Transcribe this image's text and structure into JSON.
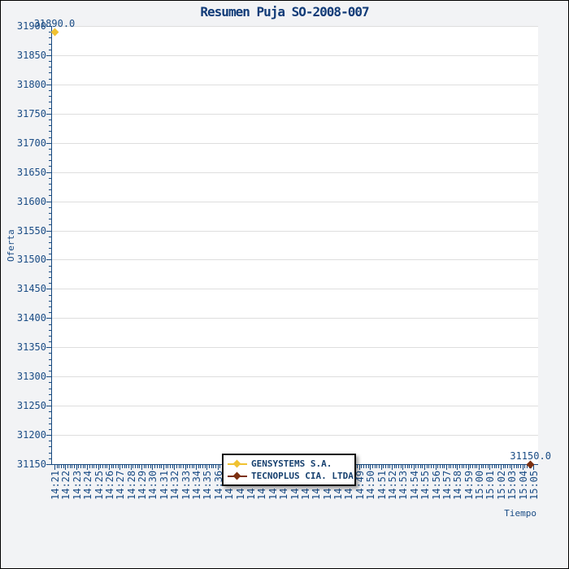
{
  "colors": {
    "navy_text": "#1a4c85",
    "title_navy": "#123c78",
    "axis_navy": "#17497f",
    "gridline": "#dedede",
    "plot_background": "#ffffff",
    "outer_background": "#f2f3f5",
    "series_gensystems": "#f0c232",
    "series_tecnoplus": "#7c3010"
  },
  "chart_data": {
    "type": "scatter",
    "title": "Resumen Puja SO-2008-007",
    "xlabel": "Tiempo",
    "ylabel": "Oferta",
    "ylim": [
      31150,
      31900
    ],
    "y_major_step": 50,
    "y_minor_step": 10,
    "grid": "horizontal-only",
    "legend_position": "bottom-center",
    "x_minor_per_major": 5,
    "x_tick_labels": [
      "14:21",
      "14:22",
      "14:23",
      "14:24",
      "14:25",
      "14:26",
      "14:27",
      "14:28",
      "14:29",
      "14:30",
      "14:31",
      "14:32",
      "14:33",
      "14:34",
      "14:35",
      "14:36",
      "14:37",
      "14:38",
      "14:39",
      "14:40",
      "14:41",
      "14:42",
      "14:43",
      "14:44",
      "14:45",
      "14:46",
      "14:47",
      "14:48",
      "14:49",
      "14:50",
      "14:51",
      "14:52",
      "14:53",
      "14:54",
      "14:55",
      "14:56",
      "14:57",
      "14:58",
      "14:59",
      "15:00",
      "15:01",
      "15:02",
      "15:03",
      "15:04",
      "15:05"
    ],
    "series": [
      {
        "name": "GENSYSTEMS S.A.",
        "color": "#f0c232",
        "marker": "diamond",
        "points": [
          {
            "time": "14:21:00",
            "value": 31890.0,
            "annotation": "31890.0"
          }
        ]
      },
      {
        "name": "TECNOPLUS CIA. LTDA.",
        "color": "#7c3010",
        "marker": "diamond",
        "points": [
          {
            "time": "15:04:45",
            "value": 31150.0,
            "annotation": "31150.0"
          }
        ]
      }
    ]
  }
}
